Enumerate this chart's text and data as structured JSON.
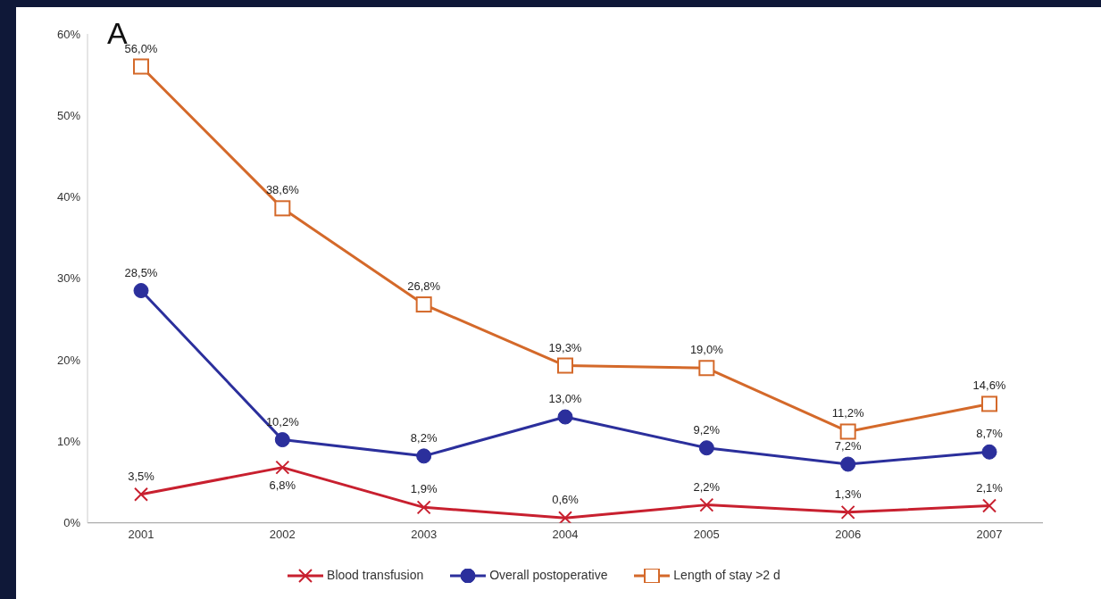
{
  "chart_data": {
    "type": "line",
    "title": "A",
    "categories": [
      "2001",
      "2002",
      "2003",
      "2004",
      "2005",
      "2006",
      "2007"
    ],
    "ylim": [
      0,
      60
    ],
    "yticks": [
      {
        "value": 0,
        "label": "0%"
      },
      {
        "value": 10,
        "label": "10%"
      },
      {
        "value": 20,
        "label": "20%"
      },
      {
        "value": 30,
        "label": "30%"
      },
      {
        "value": 40,
        "label": "40%"
      },
      {
        "value": 50,
        "label": "50%"
      },
      {
        "value": 60,
        "label": "60%"
      }
    ],
    "grid": false,
    "legend": "bottom",
    "line_style": "solid",
    "series": [
      {
        "name": "Blood transfusion",
        "color": "#c8202f",
        "marker": "cross",
        "values": [
          3.5,
          6.8,
          1.9,
          0.6,
          2.2,
          1.3,
          2.1
        ],
        "value_labels": [
          "3,5%",
          "6,8%",
          "1,9%",
          "0,6%",
          "2,2%",
          "1,3%",
          "2,1%"
        ]
      },
      {
        "name": "Overall postoperative",
        "color": "#2b2f9c",
        "marker": "circle",
        "values": [
          28.5,
          10.2,
          8.2,
          13.0,
          9.2,
          7.2,
          8.7
        ],
        "value_labels": [
          "28,5%",
          "10,2%",
          "8,2%",
          "13,0%",
          "9,2%",
          "7,2%",
          "8,7%"
        ]
      },
      {
        "name": "Length of stay >2 d",
        "color": "#d4692a",
        "marker": "square",
        "values": [
          56.0,
          38.6,
          26.8,
          19.3,
          19.0,
          11.2,
          14.6
        ],
        "value_labels": [
          "56,0%",
          "38,6%",
          "26,8%",
          "19,3%",
          "19,0%",
          "11,2%",
          "14,6%"
        ]
      }
    ]
  }
}
